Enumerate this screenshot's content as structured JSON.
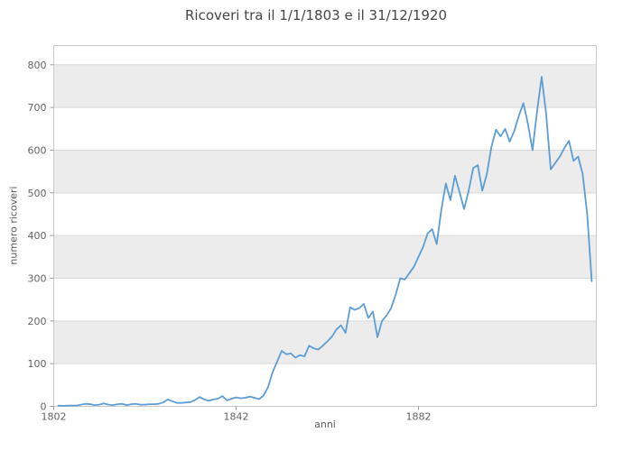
{
  "title": "Ricoveri tra il 1/1/1803 e il 31/12/1920",
  "chart_data": {
    "type": "line",
    "title": "Ricoveri tra il 1/1/1803 e il 31/12/1920",
    "xlabel": "anni",
    "ylabel": "numero ricoveri",
    "legend": "none",
    "grid": "horizontal bands, alternating shading every 100 units",
    "x_ticks": [
      1802,
      1842,
      1882
    ],
    "y_ticks": [
      0,
      100,
      200,
      300,
      400,
      500,
      600,
      700,
      800
    ],
    "xlim": [
      1802,
      1921
    ],
    "ylim": [
      0,
      845
    ],
    "line_color": "#5C9DD6",
    "band_color": "#ECECEC",
    "grid_color": "#D9D9D9",
    "border_color": "#C9C9C9",
    "tick_color": "#9A9A9A",
    "x": [
      1803,
      1804,
      1805,
      1806,
      1807,
      1808,
      1809,
      1810,
      1811,
      1812,
      1813,
      1814,
      1815,
      1816,
      1817,
      1818,
      1819,
      1820,
      1821,
      1822,
      1823,
      1824,
      1825,
      1826,
      1827,
      1828,
      1829,
      1830,
      1831,
      1832,
      1833,
      1834,
      1835,
      1836,
      1837,
      1838,
      1839,
      1840,
      1841,
      1842,
      1843,
      1844,
      1845,
      1846,
      1847,
      1848,
      1849,
      1850,
      1851,
      1852,
      1853,
      1854,
      1855,
      1856,
      1857,
      1858,
      1859,
      1860,
      1861,
      1862,
      1863,
      1864,
      1865,
      1866,
      1867,
      1868,
      1869,
      1870,
      1871,
      1872,
      1873,
      1874,
      1875,
      1876,
      1877,
      1878,
      1879,
      1880,
      1881,
      1882,
      1883,
      1884,
      1885,
      1886,
      1887,
      1888,
      1889,
      1890,
      1891,
      1892,
      1893,
      1894,
      1895,
      1896,
      1897,
      1898,
      1899,
      1900,
      1901,
      1902,
      1903,
      1904,
      1905,
      1906,
      1907,
      1908,
      1909,
      1910,
      1911,
      1912,
      1913,
      1914,
      1915,
      1916,
      1917,
      1918,
      1919,
      1920
    ],
    "values": [
      2,
      1,
      2,
      2,
      2,
      4,
      6,
      5,
      3,
      4,
      7,
      4,
      3,
      5,
      6,
      3,
      5,
      6,
      4,
      4,
      5,
      5,
      6,
      9,
      16,
      12,
      8,
      8,
      9,
      10,
      15,
      22,
      16,
      13,
      16,
      18,
      24,
      14,
      18,
      21,
      19,
      20,
      23,
      20,
      17,
      25,
      45,
      80,
      105,
      130,
      122,
      124,
      114,
      120,
      117,
      142,
      136,
      133,
      142,
      152,
      163,
      180,
      190,
      172,
      232,
      226,
      230,
      240,
      207,
      222,
      162,
      200,
      213,
      230,
      262,
      300,
      297,
      312,
      327,
      350,
      373,
      405,
      415,
      380,
      460,
      522,
      483,
      540,
      502,
      462,
      505,
      558,
      565,
      505,
      545,
      608,
      648,
      632,
      650,
      620,
      645,
      680,
      710,
      662,
      600,
      690,
      772,
      685,
      555,
      570,
      585,
      605,
      622,
      575,
      585,
      545,
      450,
      293
    ]
  }
}
